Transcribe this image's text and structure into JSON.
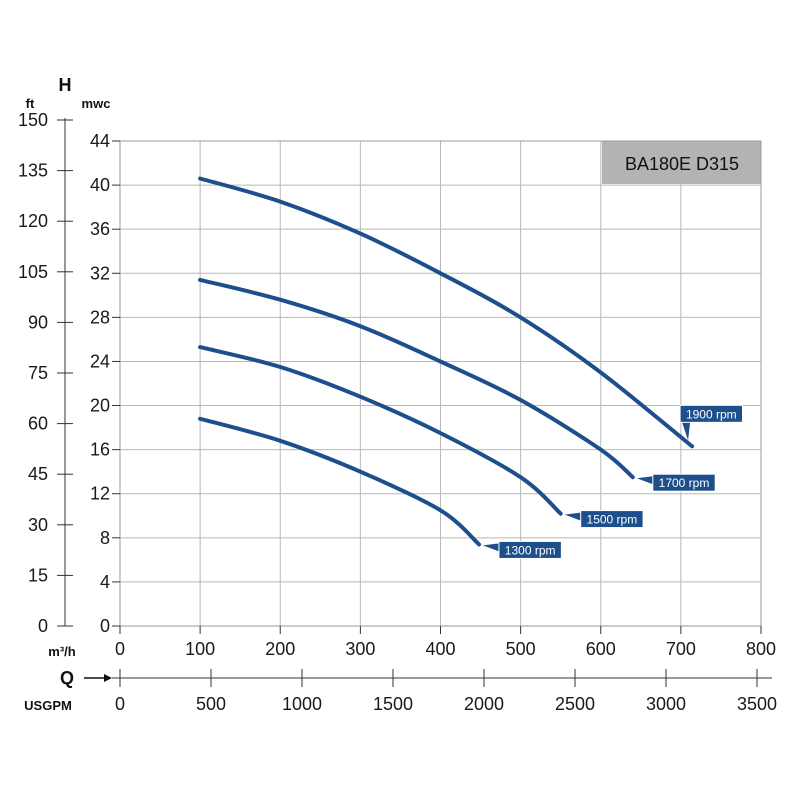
{
  "chart_data": {
    "type": "line",
    "title": "BA180E D315",
    "y_axis_primary": {
      "symbol": "H",
      "unit": "mwc",
      "range": [
        0,
        44
      ],
      "ticks": [
        "0",
        "4",
        "8",
        "12",
        "16",
        "20",
        "24",
        "28",
        "32",
        "36",
        "40",
        "44"
      ]
    },
    "y_axis_secondary": {
      "unit": "ft",
      "range": [
        0,
        150
      ],
      "ticks": [
        "0",
        "15",
        "30",
        "45",
        "60",
        "75",
        "90",
        "105",
        "120",
        "135",
        "150"
      ]
    },
    "x_axis_primary": {
      "unit": "m³/h",
      "range": [
        0,
        800
      ],
      "ticks": [
        "0",
        "100",
        "200",
        "300",
        "400",
        "500",
        "600",
        "700",
        "800"
      ]
    },
    "x_axis_secondary": {
      "unit": "USGPM",
      "range": [
        0,
        3522
      ],
      "ticks": [
        "0",
        "500",
        "1000",
        "1500",
        "2000",
        "2500",
        "3000",
        "3500"
      ]
    },
    "x_axis_symbol": "Q",
    "grid": true,
    "series": [
      {
        "name": "1900 rpm",
        "points": [
          [
            100,
            40.6
          ],
          [
            200,
            38.5
          ],
          [
            300,
            35.6
          ],
          [
            400,
            32.0
          ],
          [
            500,
            28.0
          ],
          [
            600,
            23.0
          ],
          [
            714,
            16.3
          ]
        ]
      },
      {
        "name": "1700 rpm",
        "points": [
          [
            100,
            31.4
          ],
          [
            200,
            29.6
          ],
          [
            300,
            27.2
          ],
          [
            400,
            24.0
          ],
          [
            500,
            20.5
          ],
          [
            600,
            16.0
          ],
          [
            640,
            13.5
          ]
        ]
      },
      {
        "name": "1500 rpm",
        "points": [
          [
            100,
            25.3
          ],
          [
            200,
            23.5
          ],
          [
            300,
            20.8
          ],
          [
            400,
            17.5
          ],
          [
            500,
            13.5
          ],
          [
            550,
            10.2
          ]
        ]
      },
      {
        "name": "1300 rpm",
        "points": [
          [
            100,
            18.8
          ],
          [
            200,
            16.8
          ],
          [
            300,
            14.0
          ],
          [
            400,
            10.5
          ],
          [
            448,
            7.4
          ]
        ]
      }
    ]
  }
}
